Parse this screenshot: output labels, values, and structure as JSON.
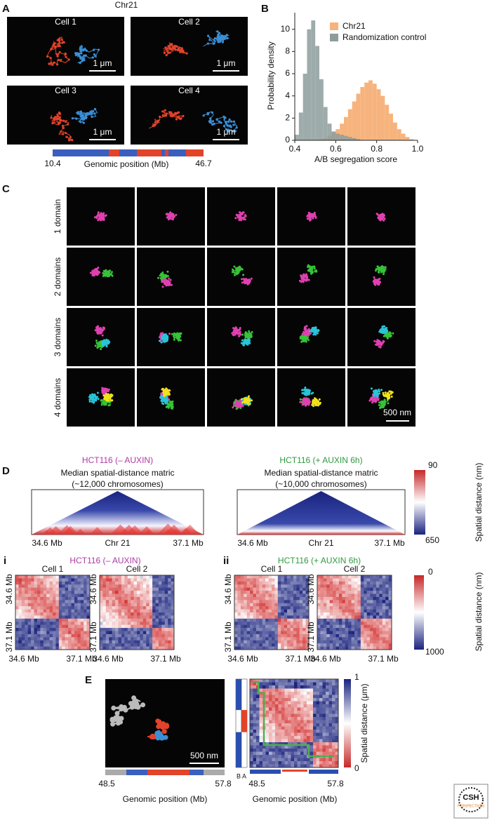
{
  "panel_a": {
    "label": "A",
    "title": "Chr21",
    "cells": [
      "Cell 1",
      "Cell 2",
      "Cell 3",
      "Cell 4"
    ],
    "scale_bar": "1 μm",
    "axis_start": "10.4",
    "axis_end": "46.7",
    "axis_label": "Genomic position (Mb)"
  },
  "panel_b": {
    "label": "B",
    "type": "histogram",
    "xlabel": "A/B segregation score",
    "ylabel": "Probability density",
    "bins": [
      0.4,
      0.42,
      0.44,
      0.46,
      0.48,
      0.5,
      0.52,
      0.54,
      0.56,
      0.58,
      0.6,
      0.62,
      0.64,
      0.66,
      0.68,
      0.7,
      0.72,
      0.74,
      0.76,
      0.78,
      0.8,
      0.82,
      0.84,
      0.86,
      0.88,
      0.9,
      0.92,
      0.94,
      0.96,
      0.98,
      1.0
    ],
    "series": [
      {
        "name": "Chr21",
        "color": "#f7b37d",
        "values": [
          0,
          0,
          0,
          0,
          0,
          0,
          0.1,
          0.2,
          0.4,
          0.7,
          1.0,
          1.5,
          2.1,
          2.8,
          3.5,
          4.2,
          4.8,
          5.2,
          5.4,
          5.1,
          4.6,
          4.0,
          3.2,
          2.4,
          1.6,
          1.0,
          0.6,
          0.3,
          0.1,
          0
        ]
      },
      {
        "name": "Randomization control",
        "color": "#8d9c9c",
        "values": [
          0.5,
          2.5,
          6,
          10,
          10.8,
          8.5,
          5.5,
          3,
          1.5,
          0.8,
          0.6,
          0.5,
          0.4,
          0.3,
          0.2,
          0.1,
          0,
          0,
          0,
          0,
          0,
          0,
          0,
          0,
          0,
          0,
          0,
          0,
          0,
          0
        ]
      }
    ],
    "xlim": [
      0.4,
      1
    ],
    "ylim": [
      0,
      11.5
    ],
    "xticks": [
      0.4,
      0.6,
      0.8,
      {
        "value": 1,
        "label": "1.0"
      }
    ],
    "yticks": [
      0,
      2,
      4,
      6,
      8,
      10
    ]
  },
  "panel_c": {
    "label": "C",
    "rows": [
      "1 domain",
      "2 domains",
      "3 domains",
      "4 domains"
    ],
    "scale_bar": "500 nm"
  },
  "panel_d": {
    "label": "D",
    "left": {
      "title": "HCT116 (– AUXIN)",
      "subtitle": "Median spatial-distance matric",
      "count": "(~12,000 chromosomes)",
      "start": "34.6 Mb",
      "mid": "Chr 21",
      "end": "37.1 Mb"
    },
    "right": {
      "title": "HCT116 (+ AUXIN 6h)",
      "subtitle": "Median spatial-distance matric",
      "count": "(~10,000 chromosomes)",
      "start": "34.6 Mb",
      "mid": "Chr 21",
      "end": "37.1 Mb"
    },
    "colorbar": {
      "top": "90",
      "bottom": "650",
      "label": "Spatial distance (nm)"
    },
    "sub_i": {
      "label": "i",
      "title": "HCT116 (– AUXIN)",
      "cells": [
        "Cell 1",
        "Cell 2"
      ],
      "start": "34.6 Mb",
      "end": "37.1 Mb"
    },
    "sub_ii": {
      "label": "ii",
      "title": "HCT116 (+ AUXIN 6h)",
      "cells": [
        "Cell 1",
        "Cell 2"
      ],
      "start": "34.6 Mb",
      "end": "37.1 Mb"
    },
    "colorbar2": {
      "top": "0",
      "bottom": "1000",
      "label": "Spatial distance (nm)"
    }
  },
  "panel_e": {
    "label": "E",
    "scale_bar": "500 nm",
    "start": "48.5",
    "end": "57.8",
    "axis_label": "Genomic position (Mb)",
    "compartments": [
      "B",
      "A"
    ],
    "colorbar": {
      "top": "1",
      "bottom": "0",
      "label": "Spatial distance (μm)"
    }
  },
  "logo": {
    "name": "CSH",
    "tagline": "PERSPECTIVES"
  }
}
